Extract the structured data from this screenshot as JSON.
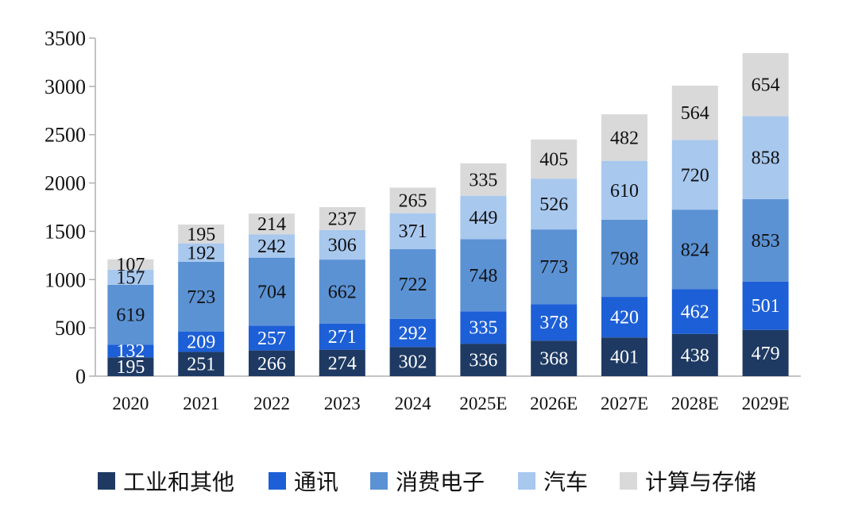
{
  "chart_data": {
    "type": "bar",
    "stacked": true,
    "categories": [
      "2020",
      "2021",
      "2022",
      "2023",
      "2024",
      "2025E",
      "2026E",
      "2027E",
      "2028E",
      "2029E"
    ],
    "series": [
      {
        "name": "工业和其他",
        "color": "#1e3a63",
        "values": [
          195,
          251,
          266,
          274,
          302,
          336,
          368,
          401,
          438,
          479
        ]
      },
      {
        "name": "通讯",
        "color": "#1d5fd6",
        "values": [
          132,
          209,
          257,
          271,
          292,
          335,
          378,
          420,
          462,
          501
        ]
      },
      {
        "name": "消费电子",
        "color": "#5b92d4",
        "values": [
          619,
          723,
          704,
          662,
          722,
          748,
          773,
          798,
          824,
          853
        ]
      },
      {
        "name": "汽车",
        "color": "#a8c8ee",
        "values": [
          157,
          192,
          242,
          306,
          371,
          449,
          526,
          610,
          720,
          858
        ]
      },
      {
        "name": "计算与存储",
        "color": "#d9d9d9",
        "values": [
          107,
          195,
          214,
          237,
          265,
          335,
          405,
          482,
          564,
          654
        ]
      }
    ],
    "ylim": [
      0,
      3500
    ],
    "yticks": [
      0,
      500,
      1000,
      1500,
      2000,
      2500,
      3000,
      3500
    ],
    "grid": false,
    "legend": "bottom",
    "title": "",
    "xlabel": "",
    "ylabel": ""
  }
}
